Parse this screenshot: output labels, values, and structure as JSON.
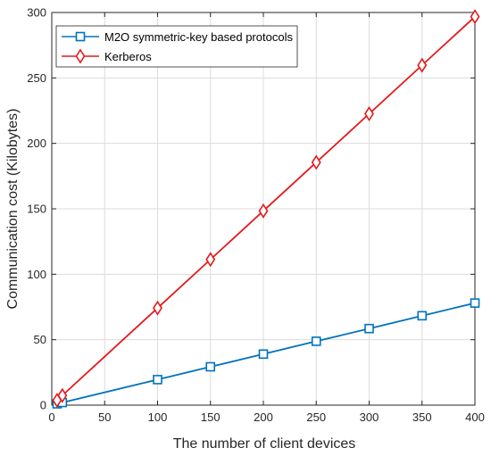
{
  "chart_data": {
    "type": "line",
    "title": "",
    "xlabel": "The number of client devices",
    "ylabel": "Communication cost (Kilobytes)",
    "xlim": [
      0,
      400
    ],
    "ylim": [
      0,
      300
    ],
    "xticks": [
      "0",
      "50",
      "100",
      "150",
      "200",
      "250",
      "300",
      "350",
      "400"
    ],
    "yticks": [
      "0",
      "50",
      "100",
      "150",
      "200",
      "250",
      "300"
    ],
    "grid": true,
    "legend_position": "top-left",
    "series": [
      {
        "name": "M2O symmetric-key based protocols",
        "color": "#0072BD",
        "marker": "square",
        "x": [
          5,
          10,
          100,
          150,
          200,
          250,
          300,
          350,
          400
        ],
        "y": [
          1,
          2,
          19.5,
          29.3,
          39,
          48.8,
          58.5,
          68.3,
          78
        ]
      },
      {
        "name": "Kerberos",
        "color": "#E31A1C",
        "marker": "diamond",
        "x": [
          5,
          10,
          100,
          150,
          200,
          250,
          300,
          350,
          400
        ],
        "y": [
          3.7,
          7.4,
          74.2,
          111.3,
          148.4,
          185.5,
          222.6,
          259.7,
          296.8
        ]
      }
    ]
  }
}
